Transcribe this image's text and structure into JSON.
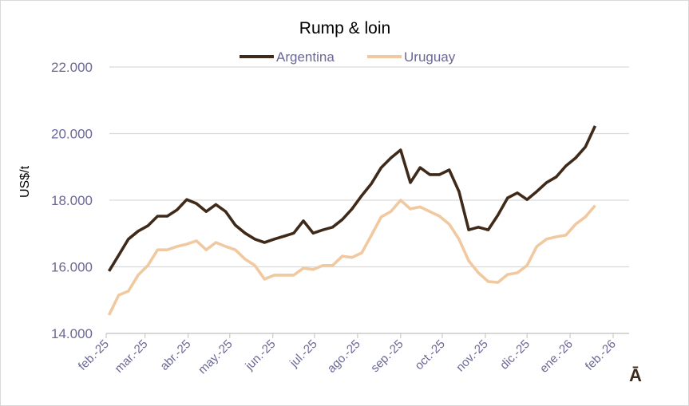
{
  "chart_data": {
    "type": "line",
    "title": "Rump & loin",
    "ylabel": "US$/t",
    "xlabel": "",
    "ylim": [
      14000,
      22000
    ],
    "yticks": [
      14000,
      16000,
      18000,
      20000,
      22000
    ],
    "ytick_labels": [
      "14.000",
      "16.000",
      "18.000",
      "20.000",
      "22.000"
    ],
    "xlim": [
      "2025-02-01",
      "2026-02-01"
    ],
    "xtick_dates": [
      "2025-02-01",
      "2025-03-01",
      "2025-04-01",
      "2025-05-01",
      "2025-06-01",
      "2025-07-01",
      "2025-08-01",
      "2025-09-01",
      "2025-10-01",
      "2025-11-01",
      "2025-12-01",
      "2026-01-01",
      "2026-02-01"
    ],
    "xtick_labels": [
      "feb.-25",
      "mar.-25",
      "abr.-25",
      "may.-25",
      "jun.-25",
      "jul.-25",
      "ago.-25",
      "sep.-25",
      "oct.-25",
      "nov.-25",
      "dic.-25",
      "ene.-26",
      "feb.-26"
    ],
    "grid": "horizontal",
    "legend_position": "top",
    "x": [
      "2025-02-03",
      "2025-02-10",
      "2025-02-17",
      "2025-02-24",
      "2025-03-03",
      "2025-03-10",
      "2025-03-17",
      "2025-03-24",
      "2025-03-31",
      "2025-04-07",
      "2025-04-14",
      "2025-04-21",
      "2025-04-28",
      "2025-05-05",
      "2025-05-12",
      "2025-05-19",
      "2025-05-26",
      "2025-06-02",
      "2025-06-09",
      "2025-06-16",
      "2025-06-23",
      "2025-06-30",
      "2025-07-07",
      "2025-07-14",
      "2025-07-21",
      "2025-07-28",
      "2025-08-04",
      "2025-08-11",
      "2025-08-18",
      "2025-08-25",
      "2025-09-01",
      "2025-09-08",
      "2025-09-15",
      "2025-09-22",
      "2025-09-29",
      "2025-10-06",
      "2025-10-13",
      "2025-10-20",
      "2025-10-27",
      "2025-11-03",
      "2025-11-10",
      "2025-11-17",
      "2025-11-24",
      "2025-12-01",
      "2025-12-08",
      "2025-12-15",
      "2025-12-22",
      "2025-12-29",
      "2026-01-05",
      "2026-01-12",
      "2026-01-19"
    ],
    "series": [
      {
        "name": "Argentina",
        "color": "#3f2a1a",
        "values": [
          15870,
          16350,
          16830,
          17070,
          17230,
          17520,
          17520,
          17710,
          18020,
          17900,
          17660,
          17870,
          17660,
          17250,
          17010,
          16830,
          16730,
          16830,
          16920,
          17010,
          17380,
          17010,
          17110,
          17190,
          17420,
          17740,
          18140,
          18500,
          18980,
          19270,
          19510,
          18530,
          18980,
          18770,
          18770,
          18910,
          18260,
          17110,
          17190,
          17110,
          17550,
          18070,
          18220,
          18020,
          18260,
          18530,
          18700,
          19030,
          19270,
          19600,
          20230
        ]
      },
      {
        "name": "Uruguay",
        "color": "#f0c9a0",
        "values": [
          14550,
          15150,
          15270,
          15750,
          16040,
          16510,
          16510,
          16610,
          16680,
          16780,
          16510,
          16730,
          16610,
          16510,
          16230,
          16040,
          15630,
          15750,
          15750,
          15750,
          15960,
          15920,
          16040,
          16040,
          16320,
          16280,
          16420,
          16950,
          17500,
          17660,
          18000,
          17740,
          17800,
          17660,
          17520,
          17280,
          16830,
          16180,
          15820,
          15560,
          15530,
          15770,
          15820,
          16040,
          16610,
          16830,
          16900,
          16950,
          17280,
          17500,
          17840
        ]
      }
    ]
  },
  "corner_glyph": "Ā"
}
